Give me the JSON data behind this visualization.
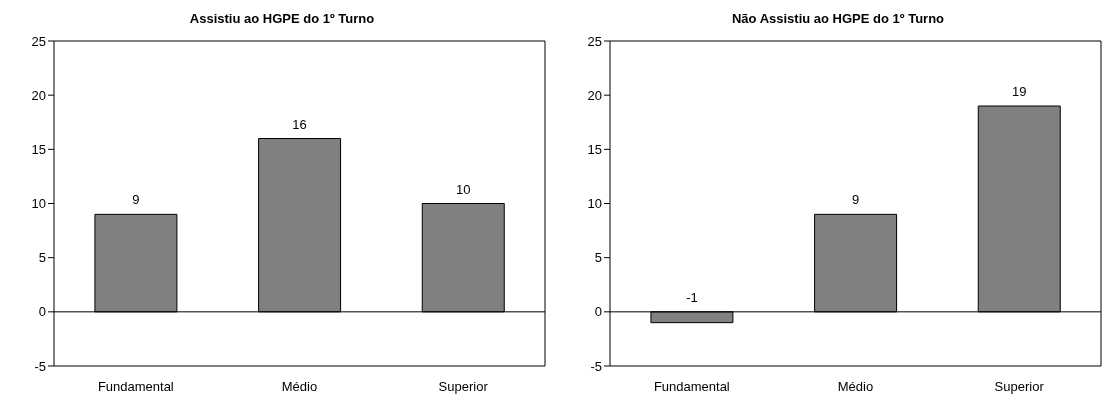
{
  "chart_data": [
    {
      "type": "bar",
      "title": "Assistiu ao HGPE do 1º Turno",
      "categories": [
        "Fundamental",
        "Médio",
        "Superior"
      ],
      "values": [
        9,
        16,
        10
      ],
      "color": "#808080",
      "ylim": [
        -5,
        25
      ],
      "yticks": [
        -5,
        0,
        5,
        10,
        15,
        20,
        25
      ],
      "data_labels": true,
      "ref_lines": [
        {
          "axis": "y",
          "value": 0,
          "color": "#000000"
        }
      ]
    },
    {
      "type": "bar",
      "title": "Não Assistiu ao HGPE do 1º Turno",
      "categories": [
        "Fundamental",
        "Médio",
        "Superior"
      ],
      "values": [
        -1,
        9,
        19
      ],
      "color": "#808080",
      "ylim": [
        -5,
        25
      ],
      "yticks": [
        -5,
        0,
        5,
        10,
        15,
        20,
        25
      ],
      "data_labels": true,
      "ref_lines": [
        {
          "axis": "y",
          "value": 0,
          "color": "#000000"
        }
      ]
    }
  ]
}
